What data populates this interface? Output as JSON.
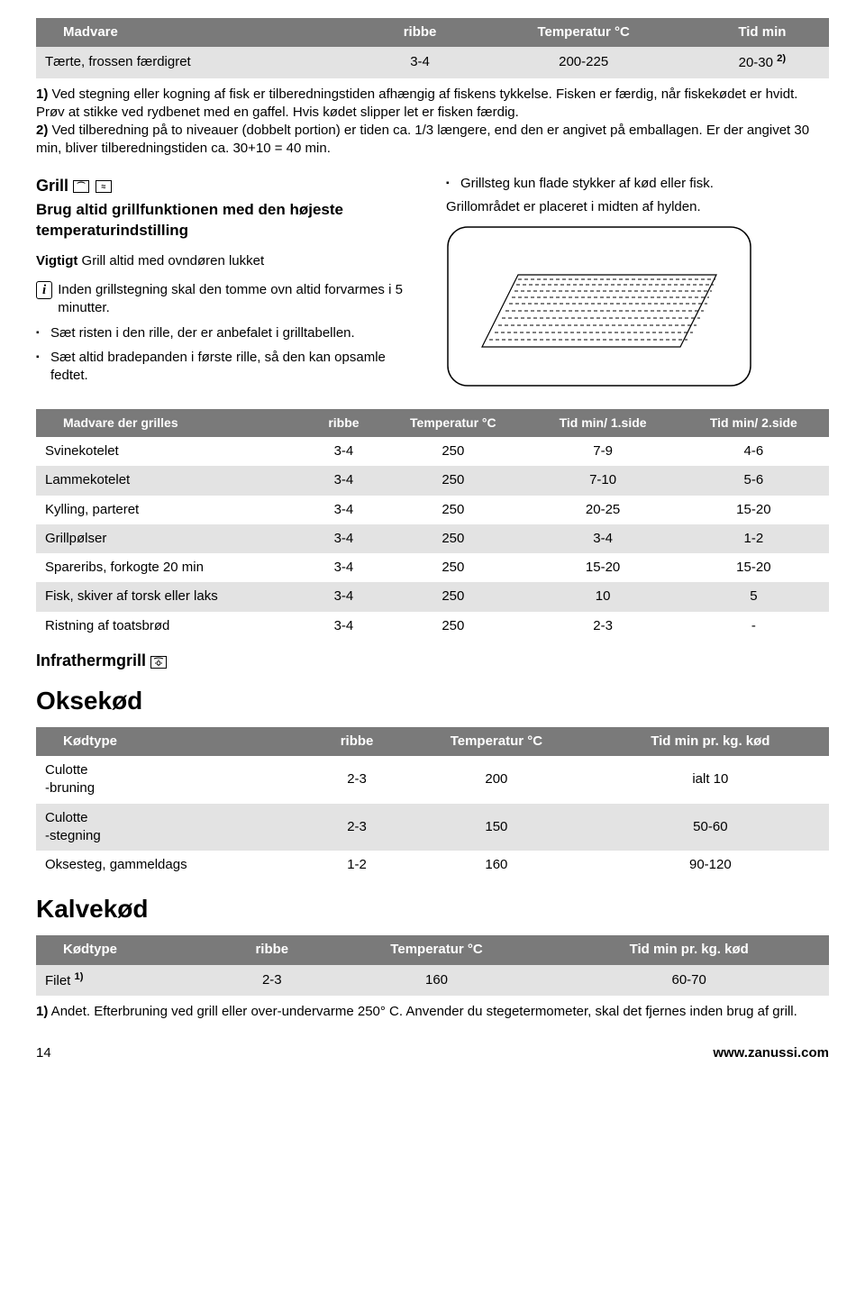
{
  "table1": {
    "headers": [
      "Madvare",
      "ribbe",
      "Temperatur °C",
      "Tid min"
    ],
    "row": {
      "name": "Tærte, frossen færdigret",
      "ribbe": "3-4",
      "temp": "200-225",
      "tid_prefix": "20-30 ",
      "tid_sup": "2)"
    }
  },
  "notes1": {
    "line1_b": "1)",
    "line1": " Ved stegning eller kogning af fisk er tilberedningstiden afhængig af fiskens tykkelse. Fisken er færdig, når fiskekødet er hvidt. Prøv at stikke ved rydbenet med en gaffel. Hvis kødet slipper let er fisken færdig.",
    "line2_b": "2)",
    "line2": " Ved tilberedning på to niveauer (dobbelt portion) er tiden ca. 1/3 længere, end den er angivet på emballagen. Er der angivet 30 min, bliver tilberedningstiden ca. 30+10 = 40 min."
  },
  "grill": {
    "title": "Grill ",
    "sub1": "Brug altid grillfunktionen med den højeste temperaturindstilling",
    "vigtigt_b": "Vigtigt",
    "vigtigt_rest": " Grill altid med ovndøren lukket",
    "info": "Inden grillstegning skal den tomme ovn altid forvarmes i 5 minutter.",
    "b1": "Sæt risten i den rille, der er anbefalet i grilltabellen.",
    "b2": "Sæt altid bradepanden i første rille, så den kan opsamle fedtet.",
    "right_b1": "Grillsteg kun flade stykker af kød eller fisk.",
    "right_p": "Grillområdet er placeret i midten af hylden."
  },
  "table2": {
    "headers": [
      "Madvare der grilles",
      "ribbe",
      "Temperatur °C",
      "Tid min/ 1.side",
      "Tid min/ 2.side"
    ],
    "rows": [
      {
        "c": [
          "Svinekotelet",
          "3-4",
          "250",
          "7-9",
          "4-6"
        ],
        "alt": false
      },
      {
        "c": [
          "Lammekotelet",
          "3-4",
          "250",
          "7-10",
          "5-6"
        ],
        "alt": true
      },
      {
        "c": [
          "Kylling, parteret",
          "3-4",
          "250",
          "20-25",
          "15-20"
        ],
        "alt": false
      },
      {
        "c": [
          "Grillpølser",
          "3-4",
          "250",
          "3-4",
          "1-2"
        ],
        "alt": true
      },
      {
        "c": [
          "Spareribs, forkogte 20 min",
          "3-4",
          "250",
          "15-20",
          "15-20"
        ],
        "alt": false
      },
      {
        "c": [
          "Fisk, skiver af torsk eller laks",
          "3-4",
          "250",
          "10",
          "5"
        ],
        "alt": true
      },
      {
        "c": [
          "Ristning af toatsbrød",
          "3-4",
          "250",
          "2-3",
          "-"
        ],
        "alt": false
      }
    ]
  },
  "infratherm": "Infrathermgrill ",
  "okse": {
    "title": "Oksekød",
    "headers": [
      "Kødtype",
      "ribbe",
      "Temperatur °C",
      "Tid min pr. kg. kød"
    ],
    "rows": [
      {
        "c": [
          "Culotte\n-bruning",
          "2-3",
          "200",
          "ialt 10"
        ],
        "alt": false
      },
      {
        "c": [
          "Culotte\n-stegning",
          "2-3",
          "150",
          "50-60"
        ],
        "alt": true
      },
      {
        "c": [
          "Oksesteg, gammeldags",
          "1-2",
          "160",
          "90-120"
        ],
        "alt": false
      }
    ]
  },
  "kalv": {
    "title": "Kalvekød",
    "headers": [
      "Kødtype",
      "ribbe",
      "Temperatur °C",
      "Tid min pr. kg. kød"
    ],
    "row": {
      "name_prefix": "Filet ",
      "name_sup": "1)",
      "ribbe": "2-3",
      "temp": "160",
      "tid": "60-70"
    }
  },
  "footnote": {
    "b": "1)",
    "text": " Andet. Efterbruning ved grill eller over-undervarme 250° C. Anvender du stegetermometer, skal det fjernes inden brug af grill."
  },
  "footer": {
    "page": "14",
    "url": "www.zanussi.com"
  }
}
